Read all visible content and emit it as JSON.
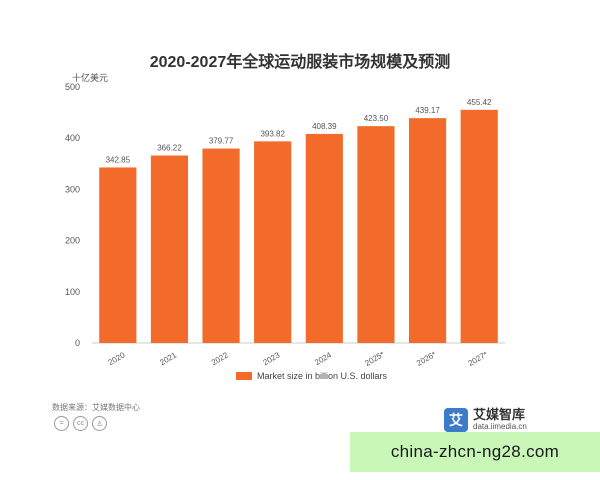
{
  "chart_data": {
    "type": "bar",
    "title": "2020-2027年全球运动服装市场规模及预测",
    "unit_label": "十亿美元",
    "categories": [
      "2020",
      "2021",
      "2022",
      "2023",
      "2024",
      "2025*",
      "2026*",
      "2027*"
    ],
    "series": [
      {
        "name": "Market size in billion U.S. dollars",
        "values": [
          342.85,
          366.22,
          379.77,
          393.82,
          408.39,
          423.5,
          439.17,
          455.42
        ],
        "value_labels": [
          "342.85",
          "366.22",
          "379.77",
          "393.82",
          "408.39",
          "423.50",
          "439.17",
          "455.42"
        ]
      }
    ],
    "ylim": [
      0,
      500
    ],
    "yticks": [
      "0",
      "100",
      "200",
      "300",
      "400",
      "500"
    ],
    "grid": false,
    "legend_position": "bottom"
  },
  "colors": {
    "bar": "#f26b2a",
    "axis": "#cccccc",
    "text": "#555555"
  },
  "footer": {
    "source": "数据来源：艾媒数据中心",
    "license_icons": [
      "equals-icon",
      "cc-icon",
      "person-icon"
    ]
  },
  "brand": {
    "logo_char": "艾",
    "name": "艾媒智库",
    "url": "data.iimedia.cn"
  },
  "watermark": {
    "text": "china-zhcn-ng28.com"
  }
}
